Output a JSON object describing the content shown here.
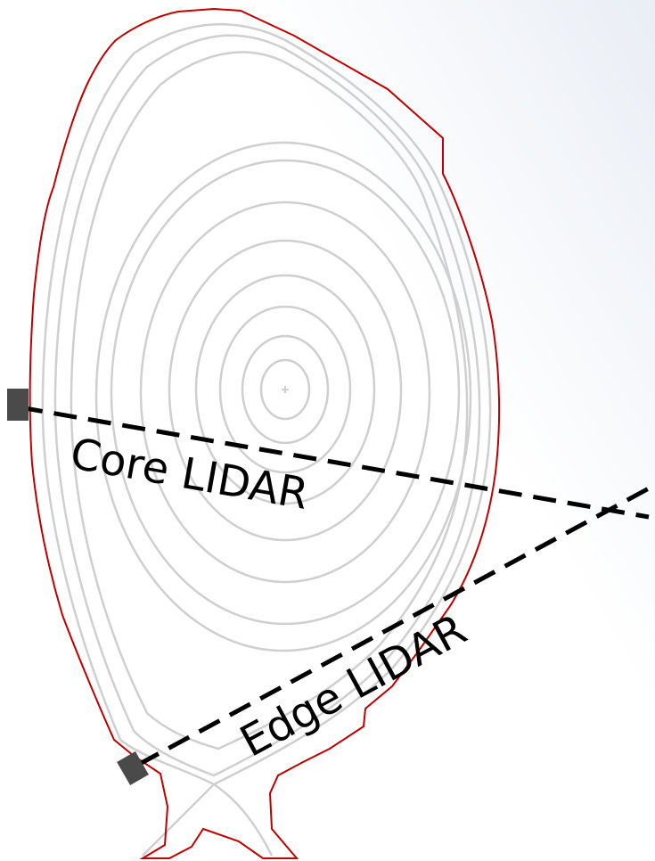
{
  "labels": {
    "core": "Core LIDAR",
    "edge": "Edge LIDAR"
  }
}
